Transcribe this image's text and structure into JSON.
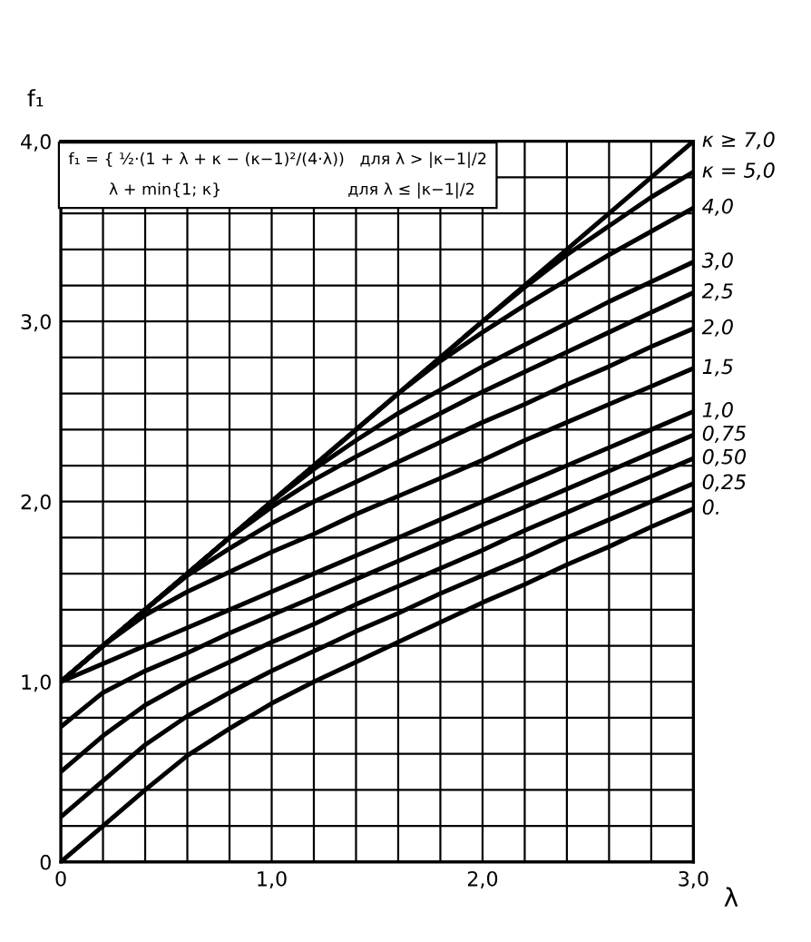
{
  "chart_data": {
    "type": "line",
    "xlabel": "λ",
    "ylabel": "f₁",
    "annotations": [
      "f₁ = { ½·(1 + λ + κ − (κ−1)²/(4·λ))   для λ > |κ−1|/2\n        λ + min{1; κ}                         для λ ≤ |κ−1|/2"
    ],
    "x": [
      0,
      0.2,
      0.4,
      0.6,
      0.8,
      1.0,
      1.2,
      1.4,
      1.6,
      1.8,
      2.0,
      2.2,
      2.4,
      2.6,
      2.8,
      3.0
    ],
    "series": [
      {
        "name": "κ ≥ 7,0",
        "color": "#000000",
        "values": [
          1.0,
          1.2,
          1.4,
          1.6,
          1.8,
          2.0,
          2.2,
          2.4,
          2.6,
          2.8,
          3.0,
          3.2,
          3.4,
          3.6,
          3.8,
          4.0
        ]
      },
      {
        "name": "κ = 5,0",
        "color": "#000000",
        "values": [
          1.0,
          1.2,
          1.4,
          1.6,
          1.8,
          2.0,
          2.2,
          2.4,
          2.6,
          2.8,
          3.0,
          3.19,
          3.37,
          3.53,
          3.69,
          3.83
        ]
      },
      {
        "name": "4,0",
        "color": "#000000",
        "values": [
          1.0,
          1.2,
          1.4,
          1.6,
          1.8,
          2.0,
          2.2,
          2.4,
          2.6,
          2.78,
          2.94,
          3.09,
          3.23,
          3.37,
          3.5,
          3.63
        ]
      },
      {
        "name": "3,0",
        "color": "#000000",
        "values": [
          1.0,
          1.2,
          1.4,
          1.6,
          1.8,
          2.0,
          2.18,
          2.34,
          2.49,
          2.62,
          2.75,
          2.87,
          2.99,
          3.11,
          3.22,
          3.33
        ]
      },
      {
        "name": "2,5",
        "color": "#000000",
        "values": [
          1.0,
          1.2,
          1.4,
          1.6,
          1.8,
          1.97,
          2.12,
          2.25,
          2.37,
          2.49,
          2.61,
          2.72,
          2.83,
          2.94,
          3.05,
          3.16
        ]
      },
      {
        "name": "2,0",
        "color": "#000000",
        "values": [
          1.0,
          1.2,
          1.4,
          1.59,
          1.74,
          1.88,
          2.0,
          2.11,
          2.22,
          2.33,
          2.44,
          2.54,
          2.65,
          2.75,
          2.86,
          2.96
        ]
      },
      {
        "name": "1,5",
        "color": "#000000",
        "values": [
          1.0,
          1.2,
          1.37,
          1.5,
          1.61,
          1.72,
          1.82,
          1.93,
          2.03,
          2.13,
          2.23,
          2.34,
          2.44,
          2.54,
          2.64,
          2.74
        ]
      },
      {
        "name": "1,0",
        "color": "#000000",
        "values": [
          1.0,
          1.1,
          1.2,
          1.3,
          1.4,
          1.5,
          1.6,
          1.7,
          1.8,
          1.9,
          2.0,
          2.1,
          2.2,
          2.3,
          2.4,
          2.5
        ]
      },
      {
        "name": "0,75",
        "color": "#000000",
        "values": [
          0.75,
          0.94,
          1.06,
          1.16,
          1.27,
          1.37,
          1.47,
          1.57,
          1.67,
          1.77,
          1.87,
          1.97,
          2.07,
          2.17,
          2.27,
          2.37
        ]
      },
      {
        "name": "0,50",
        "color": "#000000",
        "values": [
          0.5,
          0.7,
          0.87,
          1.0,
          1.11,
          1.22,
          1.32,
          1.43,
          1.53,
          1.63,
          1.73,
          1.84,
          1.94,
          2.04,
          2.14,
          2.24
        ]
      },
      {
        "name": "0,25",
        "color": "#000000",
        "values": [
          0.25,
          0.45,
          0.65,
          0.81,
          0.94,
          1.06,
          1.17,
          1.28,
          1.38,
          1.49,
          1.59,
          1.69,
          1.8,
          1.9,
          2.0,
          2.1
        ]
      },
      {
        "name": "0.",
        "color": "#000000",
        "values": [
          0.0,
          0.2,
          0.4,
          0.59,
          0.74,
          0.88,
          1.0,
          1.11,
          1.22,
          1.33,
          1.44,
          1.54,
          1.65,
          1.75,
          1.86,
          1.96
        ]
      }
    ],
    "xlim": [
      0,
      3.0
    ],
    "ylim": [
      0,
      4.0
    ],
    "xticks": [
      0,
      {
        "value": 0.2,
        "label": null
      },
      {
        "value": 0.4,
        "label": null
      },
      {
        "value": 0.6,
        "label": null
      },
      {
        "value": 0.8,
        "label": null
      },
      {
        "value": 1.0,
        "label": "1,0"
      },
      {
        "value": 1.2,
        "label": null
      },
      {
        "value": 1.4,
        "label": null
      },
      {
        "value": 1.6,
        "label": null
      },
      {
        "value": 1.8,
        "label": null
      },
      {
        "value": 2.0,
        "label": "2,0"
      },
      {
        "value": 2.2,
        "label": null
      },
      {
        "value": 2.4,
        "label": null
      },
      {
        "value": 2.6,
        "label": null
      },
      {
        "value": 2.8,
        "label": null
      },
      {
        "value": 3.0,
        "label": "3,0"
      }
    ],
    "yticks": [
      0,
      {
        "value": 0.2,
        "label": null
      },
      {
        "value": 0.4,
        "label": null
      },
      {
        "value": 0.6,
        "label": null
      },
      {
        "value": 0.8,
        "label": null
      },
      {
        "value": 1.0,
        "label": "1,0"
      },
      {
        "value": 1.2,
        "label": null
      },
      {
        "value": 1.4,
        "label": null
      },
      {
        "value": 1.6,
        "label": null
      },
      {
        "value": 1.8,
        "label": null
      },
      {
        "value": 2.0,
        "label": "2,0"
      },
      {
        "value": 2.2,
        "label": null
      },
      {
        "value": 2.4,
        "label": null
      },
      {
        "value": 2.6,
        "label": null
      },
      {
        "value": 2.8,
        "label": null
      },
      {
        "value": 3.0,
        "label": "3,0"
      },
      {
        "value": 3.2,
        "label": null
      },
      {
        "value": 3.4,
        "label": null
      },
      {
        "value": 3.6,
        "label": null
      },
      {
        "value": 3.8,
        "label": null
      },
      {
        "value": 4.0,
        "label": "4,0"
      }
    ],
    "grid": true,
    "legend": false,
    "marker": "none",
    "line_style": "solid"
  }
}
